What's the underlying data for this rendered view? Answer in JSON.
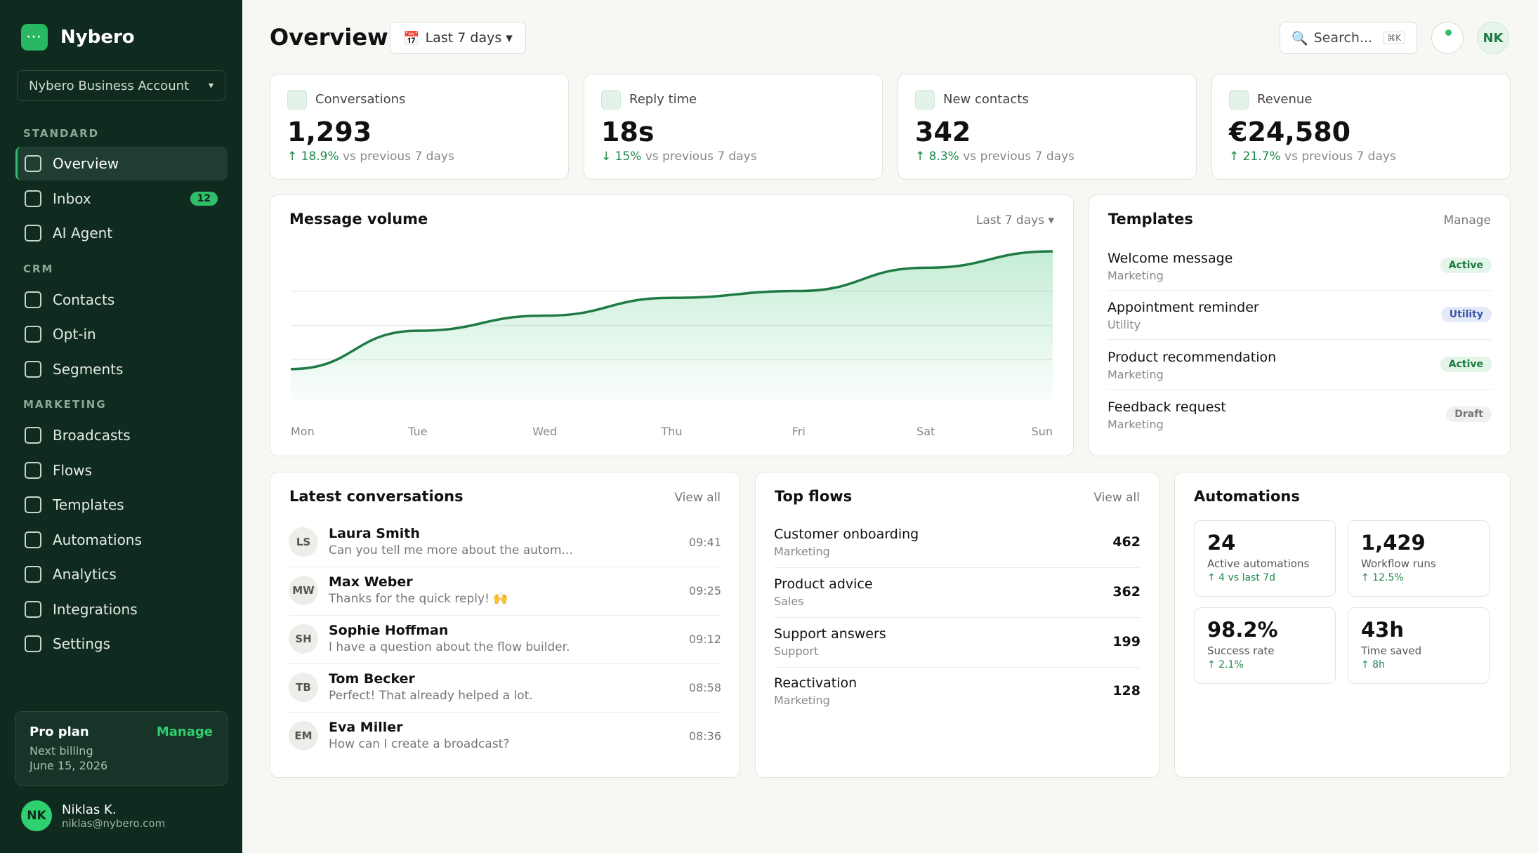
{
  "brand": {
    "name": "Nybero",
    "logo_glyph": "···"
  },
  "account": {
    "name": "Nybero Business Account"
  },
  "nav": {
    "sections": [
      {
        "title": "STANDARD",
        "items": [
          {
            "label": "Overview"
          },
          {
            "label": "Inbox",
            "badge": "12"
          },
          {
            "label": "AI Agent"
          }
        ]
      },
      {
        "title": "CRM",
        "items": [
          {
            "label": "Contacts"
          },
          {
            "label": "Opt-in"
          },
          {
            "label": "Segments"
          }
        ]
      },
      {
        "title": "MARKETING",
        "items": [
          {
            "label": "Broadcasts"
          },
          {
            "label": "Flows"
          },
          {
            "label": "Templates"
          },
          {
            "label": "Automations"
          },
          {
            "label": "Analytics"
          },
          {
            "label": "Integrations"
          },
          {
            "label": "Settings"
          }
        ]
      }
    ],
    "active": "Overview"
  },
  "plan": {
    "title": "Pro plan",
    "manage": "Manage",
    "line1": "Next billing",
    "line2": "June 15, 2026"
  },
  "user": {
    "initials": "NK",
    "name": "Niklas K.",
    "email": "niklas@nybero.com"
  },
  "header": {
    "title": "Overview",
    "date_icon": "📅",
    "date_range": "Last 7 days ▾",
    "search_icon": "🔍",
    "search_placeholder": "Search...",
    "search_shortcut": "⌘K",
    "avatar": "NK"
  },
  "kpis": [
    {
      "label": "Conversations",
      "value": "1,293",
      "delta": "↑ 18.9%",
      "delta_suffix": " vs previous 7 days"
    },
    {
      "label": "Reply time",
      "value": "18s",
      "delta": "↓ 15%",
      "delta_suffix": " vs previous 7 days"
    },
    {
      "label": "New contacts",
      "value": "342",
      "delta": "↑ 8.3%",
      "delta_suffix": " vs previous 7 days"
    },
    {
      "label": "Revenue",
      "value": "€24,580",
      "delta": "↑ 21.7%",
      "delta_suffix": " vs previous 7 days"
    }
  ],
  "message_volume": {
    "title": "Message volume",
    "range": "Last 7 days ▾",
    "chart_data": {
      "type": "area",
      "x": [
        "Mon",
        "Tue",
        "Wed",
        "Thu",
        "Fri",
        "Sat",
        "Sun"
      ],
      "values": [
        0.14,
        0.42,
        0.53,
        0.66,
        0.71,
        0.88,
        1.0
      ],
      "line_color": "#1f7a43",
      "fill_color": "#2fbf6a",
      "grid": true
    }
  },
  "templates": {
    "title": "Templates",
    "manage": "Manage",
    "items": [
      {
        "name": "Welcome message",
        "category": "Marketing",
        "status": "Active"
      },
      {
        "name": "Appointment reminder",
        "category": "Utility",
        "status": "Utility"
      },
      {
        "name": "Product recommendation",
        "category": "Marketing",
        "status": "Active"
      },
      {
        "name": "Feedback request",
        "category": "Marketing",
        "status": "Draft"
      }
    ]
  },
  "conversations": {
    "title": "Latest conversations",
    "view_all": "View all",
    "items": [
      {
        "initials": "LS",
        "name": "Laura Smith",
        "message": "Can you tell me more about the autom...",
        "time": "09:41"
      },
      {
        "initials": "MW",
        "name": "Max Weber",
        "message": "Thanks for the quick reply! 🙌",
        "time": "09:25"
      },
      {
        "initials": "SH",
        "name": "Sophie Hoffman",
        "message": "I have a question about the flow builder.",
        "time": "09:12"
      },
      {
        "initials": "TB",
        "name": "Tom Becker",
        "message": "Perfect! That already helped a lot.",
        "time": "08:58"
      },
      {
        "initials": "EM",
        "name": "Eva Miller",
        "message": "How can I create a broadcast?",
        "time": "08:36"
      }
    ]
  },
  "flows": {
    "title": "Top flows",
    "view_all": "View all",
    "items": [
      {
        "name": "Customer onboarding",
        "category": "Marketing",
        "count": "462"
      },
      {
        "name": "Product advice",
        "category": "Sales",
        "count": "362"
      },
      {
        "name": "Support answers",
        "category": "Support",
        "count": "199"
      },
      {
        "name": "Reactivation",
        "category": "Marketing",
        "count": "128"
      }
    ]
  },
  "automations": {
    "title": "Automations",
    "items": [
      {
        "value": "24",
        "label": "Active automations",
        "delta": "↑ 4 vs last 7d"
      },
      {
        "value": "1,429",
        "label": "Workflow runs",
        "delta": "↑ 12.5%"
      },
      {
        "value": "98.2%",
        "label": "Success rate",
        "delta": "↑ 2.1%"
      },
      {
        "value": "43h",
        "label": "Time saved",
        "delta": "↑ 8h"
      }
    ]
  }
}
